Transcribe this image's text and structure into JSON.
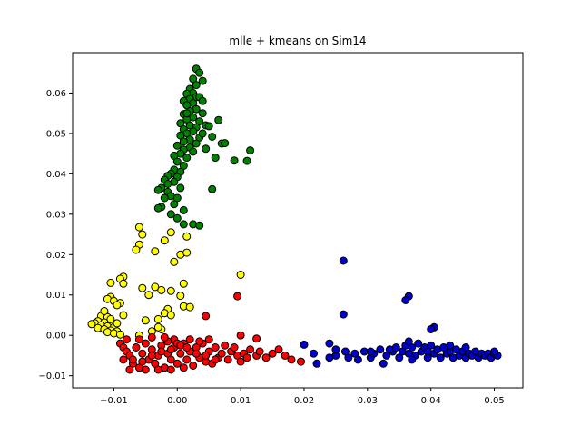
{
  "chart_data": {
    "type": "scatter",
    "title": "mlle + kmeans on Sim14",
    "xlabel": "",
    "ylabel": "",
    "xlim": [
      -0.0165,
      0.0545
    ],
    "ylim": [
      -0.013,
      0.07
    ],
    "x_ticks": [
      -0.01,
      0.0,
      0.01,
      0.02,
      0.03,
      0.04,
      0.05
    ],
    "x_tick_labels": [
      "−0.01",
      "0.00",
      "0.01",
      "0.02",
      "0.03",
      "0.04",
      "0.05"
    ],
    "y_ticks": [
      -0.01,
      0.0,
      0.01,
      0.02,
      0.03,
      0.04,
      0.05,
      0.06
    ],
    "y_tick_labels": [
      "−0.01",
      "0.00",
      "0.01",
      "0.02",
      "0.03",
      "0.04",
      "0.05",
      "0.06"
    ],
    "grid": false,
    "series": [
      {
        "name": "cluster-green",
        "color": "#008000",
        "points": [
          [
            0.003,
            0.066
          ],
          [
            0.0035,
            0.065
          ],
          [
            0.004,
            0.063
          ],
          [
            0.0025,
            0.0635
          ],
          [
            0.003,
            0.062
          ],
          [
            0.002,
            0.061
          ],
          [
            0.0025,
            0.06
          ],
          [
            0.0015,
            0.0598
          ],
          [
            0.003,
            0.059
          ],
          [
            0.002,
            0.0585
          ],
          [
            0.001,
            0.058
          ],
          [
            0.0025,
            0.0575
          ],
          [
            0.0015,
            0.057
          ],
          [
            0.003,
            0.056
          ],
          [
            0.002,
            0.0555
          ],
          [
            0.004,
            0.055
          ],
          [
            0.001,
            0.0548
          ],
          [
            0.0025,
            0.054
          ],
          [
            0.0015,
            0.0535
          ],
          [
            0.0035,
            0.053
          ],
          [
            0.0005,
            0.0525
          ],
          [
            0.002,
            0.052
          ],
          [
            0.003,
            0.0515
          ],
          [
            0.001,
            0.051
          ],
          [
            0.0025,
            0.0505
          ],
          [
            0.0015,
            0.05
          ],
          [
            0.0005,
            0.0495
          ],
          [
            0.0035,
            0.049
          ],
          [
            0.002,
            0.0485
          ],
          [
            0.001,
            0.048
          ],
          [
            0.003,
            0.0475
          ],
          [
            0.0,
            0.047
          ],
          [
            0.002,
            0.0465
          ],
          [
            0.001,
            0.046
          ],
          [
            0.0025,
            0.0455
          ],
          [
            0.0005,
            0.045
          ],
          [
            -0.0005,
            0.0445
          ],
          [
            0.0015,
            0.044
          ],
          [
            0.0,
            0.043
          ],
          [
            0.001,
            0.042
          ],
          [
            -0.0005,
            0.041
          ],
          [
            0.0005,
            0.0405
          ],
          [
            -0.001,
            0.04
          ],
          [
            -0.0015,
            0.0395
          ],
          [
            0.0,
            0.0392
          ],
          [
            -0.002,
            0.0385
          ],
          [
            -0.0005,
            0.038
          ],
          [
            -0.0015,
            0.0375
          ],
          [
            -0.0025,
            0.0365
          ],
          [
            0.0005,
            0.0365
          ],
          [
            -0.0015,
            0.0355
          ],
          [
            -0.003,
            0.036
          ],
          [
            -0.001,
            0.0345
          ],
          [
            -0.002,
            0.034
          ],
          [
            0.0,
            0.034
          ],
          [
            -0.0005,
            0.0325
          ],
          [
            -0.0025,
            0.0318
          ],
          [
            -0.003,
            0.0315
          ],
          [
            -0.001,
            0.03
          ],
          [
            0.001,
            0.031
          ],
          [
            0.0,
            0.029
          ],
          [
            0.001,
            0.0275
          ],
          [
            0.0025,
            0.0275
          ],
          [
            0.0035,
            0.0272
          ],
          [
            0.0055,
            0.0492
          ],
          [
            0.0065,
            0.0533
          ],
          [
            0.007,
            0.0475
          ],
          [
            0.0075,
            0.0476
          ],
          [
            0.009,
            0.0433
          ],
          [
            0.011,
            0.0432
          ],
          [
            0.0115,
            0.0458
          ],
          [
            0.006,
            0.044
          ],
          [
            0.0055,
            0.0362
          ],
          [
            0.0045,
            0.052
          ],
          [
            0.004,
            0.05
          ],
          [
            0.0045,
            0.0462
          ],
          [
            0.005,
            0.0518
          ],
          [
            0.0035,
            0.059
          ],
          [
            0.004,
            0.058
          ],
          [
            0.0015,
            0.055
          ]
        ]
      },
      {
        "name": "cluster-yellow",
        "color": "#ffff00",
        "points": [
          [
            -0.006,
            0.0268
          ],
          [
            -0.0055,
            0.025
          ],
          [
            -0.006,
            0.0225
          ],
          [
            -0.0065,
            0.0212
          ],
          [
            -0.0035,
            0.0208
          ],
          [
            -0.002,
            0.0235
          ],
          [
            -0.001,
            0.0255
          ],
          [
            0.0015,
            0.0245
          ],
          [
            0.0005,
            0.02
          ],
          [
            0.0015,
            0.0205
          ],
          [
            -0.0005,
            0.0182
          ],
          [
            0.01,
            0.015
          ],
          [
            -0.0085,
            0.0145
          ],
          [
            -0.009,
            0.014
          ],
          [
            -0.0105,
            0.013
          ],
          [
            -0.0085,
            0.0128
          ],
          [
            -0.0055,
            0.0117
          ],
          [
            -0.0035,
            0.012
          ],
          [
            -0.0025,
            0.0112
          ],
          [
            0.001,
            0.0128
          ],
          [
            -0.001,
            0.011
          ],
          [
            0.0005,
            0.0098
          ],
          [
            -0.0045,
            0.01
          ],
          [
            -0.0105,
            0.0095
          ],
          [
            -0.011,
            0.009
          ],
          [
            -0.01,
            0.0085
          ],
          [
            -0.009,
            0.008
          ],
          [
            -0.0095,
            0.0075
          ],
          [
            0.001,
            0.0072
          ],
          [
            0.002,
            0.007
          ],
          [
            -0.0015,
            0.0065
          ],
          [
            -0.002,
            0.0055
          ],
          [
            -0.001,
            0.005
          ],
          [
            -0.003,
            0.004
          ],
          [
            -0.005,
            0.0037
          ],
          [
            -0.0115,
            0.0055
          ],
          [
            -0.012,
            0.0048
          ],
          [
            -0.011,
            0.0045
          ],
          [
            -0.0105,
            0.004
          ],
          [
            -0.0125,
            0.0035
          ],
          [
            -0.0115,
            0.0032
          ],
          [
            -0.013,
            0.003
          ],
          [
            -0.0135,
            0.0028
          ],
          [
            -0.012,
            0.0025
          ],
          [
            -0.011,
            0.0022
          ],
          [
            -0.01,
            0.002
          ],
          [
            -0.0125,
            0.0018
          ],
          [
            -0.0115,
            0.0015
          ],
          [
            -0.0105,
            0.0012
          ],
          [
            -0.0095,
            0.001
          ],
          [
            -0.011,
            0.0008
          ],
          [
            -0.01,
            0.0005
          ],
          [
            -0.009,
            0.0002
          ],
          [
            -0.0025,
            0.0015
          ],
          [
            -0.004,
            0.001
          ],
          [
            -0.006,
            0.0
          ],
          [
            -0.003,
            0.002
          ],
          [
            -0.0085,
            0.005
          ],
          [
            -0.0095,
            0.003
          ],
          [
            -0.0115,
            0.006
          ]
        ]
      },
      {
        "name": "cluster-red",
        "color": "#ff0000",
        "points": [
          [
            0.0095,
            0.0097
          ],
          [
            0.0045,
            0.0048
          ],
          [
            0.0125,
            -0.0008
          ],
          [
            0.01,
            0.0
          ],
          [
            -0.009,
            -0.002
          ],
          [
            -0.0085,
            -0.003
          ],
          [
            -0.008,
            -0.004
          ],
          [
            -0.0075,
            -0.005
          ],
          [
            -0.0085,
            -0.006
          ],
          [
            -0.007,
            -0.007
          ],
          [
            -0.006,
            -0.008
          ],
          [
            -0.0065,
            -0.003
          ],
          [
            -0.0055,
            -0.0045
          ],
          [
            -0.0045,
            -0.006
          ],
          [
            -0.005,
            -0.002
          ],
          [
            -0.004,
            -0.0035
          ],
          [
            -0.0035,
            -0.007
          ],
          [
            -0.003,
            -0.005
          ],
          [
            -0.0025,
            -0.0025
          ],
          [
            -0.002,
            -0.008
          ],
          [
            -0.0015,
            -0.0045
          ],
          [
            -0.001,
            -0.006
          ],
          [
            -0.0005,
            -0.003
          ],
          [
            0.0,
            -0.007
          ],
          [
            0.0005,
            -0.0045
          ],
          [
            0.001,
            -0.002
          ],
          [
            0.0015,
            -0.006
          ],
          [
            0.002,
            -0.004
          ],
          [
            0.0025,
            -0.0075
          ],
          [
            0.003,
            -0.003
          ],
          [
            0.0035,
            -0.0055
          ],
          [
            0.004,
            -0.002
          ],
          [
            0.0045,
            -0.0065
          ],
          [
            0.005,
            -0.004
          ],
          [
            0.0055,
            -0.007
          ],
          [
            0.006,
            -0.003
          ],
          [
            0.0065,
            -0.0055
          ],
          [
            0.007,
            -0.0045
          ],
          [
            0.0075,
            -0.0025
          ],
          [
            0.008,
            -0.006
          ],
          [
            0.0085,
            -0.004
          ],
          [
            0.009,
            -0.003
          ],
          [
            0.0095,
            -0.005
          ],
          [
            0.01,
            -0.0065
          ],
          [
            0.0105,
            -0.0045
          ],
          [
            0.011,
            -0.0055
          ],
          [
            0.0115,
            -0.0035
          ],
          [
            0.0125,
            -0.005
          ],
          [
            0.013,
            -0.004
          ],
          [
            0.014,
            -0.0055
          ],
          [
            0.015,
            -0.0045
          ],
          [
            0.016,
            -0.0035
          ],
          [
            0.017,
            -0.005
          ],
          [
            0.018,
            -0.006
          ],
          [
            0.0195,
            -0.0065
          ],
          [
            -0.0005,
            -0.001
          ],
          [
            0.0,
            -0.002
          ],
          [
            -0.0015,
            -0.0015
          ],
          [
            0.002,
            -0.001
          ],
          [
            0.0035,
            -0.0015
          ],
          [
            -0.0075,
            -0.0085
          ],
          [
            -0.005,
            -0.0085
          ],
          [
            -0.003,
            -0.0085
          ],
          [
            -0.001,
            -0.0085
          ],
          [
            0.001,
            -0.008
          ],
          [
            -0.008,
            -0.001
          ],
          [
            -0.006,
            -0.001
          ],
          [
            -0.004,
            -0.0005
          ],
          [
            -0.002,
            -0.0005
          ],
          [
            0.005,
            -0.001
          ],
          [
            -0.007,
            -0.006
          ],
          [
            -0.0055,
            -0.0065
          ],
          [
            -0.004,
            -0.005
          ],
          [
            -0.0025,
            -0.004
          ],
          [
            -0.001,
            -0.0035
          ],
          [
            0.0005,
            -0.0025
          ],
          [
            0.0015,
            -0.003
          ],
          [
            0.003,
            -0.0045
          ],
          [
            0.0045,
            -0.005
          ],
          [
            0.006,
            -0.006
          ]
        ]
      },
      {
        "name": "cluster-blue",
        "color": "#0000cc",
        "points": [
          [
            0.0262,
            0.0185
          ],
          [
            0.0365,
            0.0097
          ],
          [
            0.036,
            0.0087
          ],
          [
            0.0262,
            0.0052
          ],
          [
            0.0405,
            0.002
          ],
          [
            0.04,
            0.0015
          ],
          [
            0.02,
            -0.0023
          ],
          [
            0.0215,
            -0.0045
          ],
          [
            0.022,
            -0.007
          ],
          [
            0.024,
            -0.0055
          ],
          [
            0.025,
            -0.005
          ],
          [
            0.0265,
            -0.004
          ],
          [
            0.028,
            -0.0045
          ],
          [
            0.0285,
            -0.006
          ],
          [
            0.0295,
            -0.004
          ],
          [
            0.0305,
            -0.0055
          ],
          [
            0.031,
            -0.0045
          ],
          [
            0.032,
            -0.0035
          ],
          [
            0.0325,
            -0.007
          ],
          [
            0.033,
            -0.005
          ],
          [
            0.034,
            -0.004
          ],
          [
            0.0345,
            -0.003
          ],
          [
            0.035,
            -0.0055
          ],
          [
            0.0355,
            -0.004
          ],
          [
            0.036,
            -0.0025
          ],
          [
            0.0365,
            -0.0045
          ],
          [
            0.037,
            -0.003
          ],
          [
            0.0375,
            -0.005
          ],
          [
            0.038,
            -0.002
          ],
          [
            0.0385,
            -0.004
          ],
          [
            0.039,
            -0.003
          ],
          [
            0.0395,
            -0.0055
          ],
          [
            0.04,
            -0.0025
          ],
          [
            0.0405,
            -0.0045
          ],
          [
            0.041,
            -0.0035
          ],
          [
            0.0415,
            -0.0055
          ],
          [
            0.042,
            -0.003
          ],
          [
            0.0425,
            -0.0045
          ],
          [
            0.043,
            -0.004
          ],
          [
            0.0435,
            -0.0055
          ],
          [
            0.044,
            -0.0035
          ],
          [
            0.0445,
            -0.005
          ],
          [
            0.045,
            -0.004
          ],
          [
            0.0455,
            -0.0055
          ],
          [
            0.046,
            -0.0045
          ],
          [
            0.0465,
            -0.005
          ],
          [
            0.047,
            -0.004
          ],
          [
            0.0475,
            -0.0055
          ],
          [
            0.048,
            -0.0045
          ],
          [
            0.0485,
            -0.005
          ],
          [
            0.049,
            -0.0045
          ],
          [
            0.0495,
            -0.0055
          ],
          [
            0.05,
            -0.0045
          ],
          [
            0.0505,
            -0.005
          ],
          [
            0.05,
            -0.004
          ],
          [
            0.0305,
            -0.004
          ],
          [
            0.0335,
            -0.0035
          ],
          [
            0.0365,
            -0.0015
          ],
          [
            0.037,
            -0.006
          ],
          [
            0.0395,
            -0.004
          ],
          [
            0.025,
            -0.0035
          ],
          [
            0.027,
            -0.0055
          ],
          [
            0.024,
            -0.002
          ],
          [
            0.043,
            -0.0025
          ],
          [
            0.0455,
            -0.003
          ]
        ]
      }
    ]
  }
}
